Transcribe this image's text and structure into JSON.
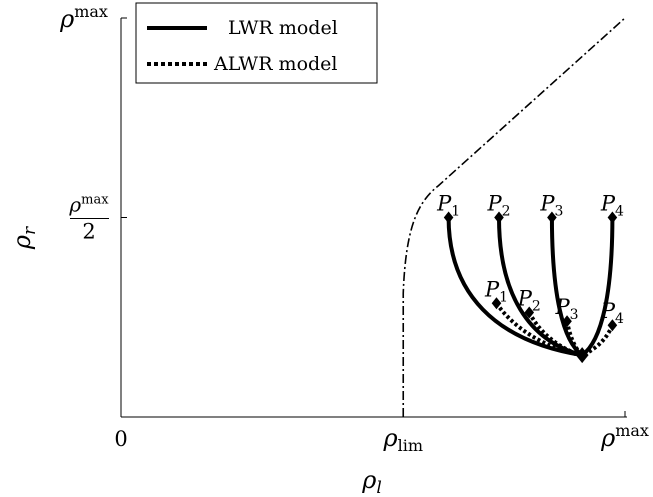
{
  "chart_data": {
    "type": "line",
    "xlabel": "ρl",
    "ylabel": "ρr",
    "x_ticks": [
      {
        "label": "0",
        "value": 0
      },
      {
        "label": "ρlim",
        "value": 0.56
      },
      {
        "label": "ρmax",
        "value": 1.0
      }
    ],
    "y_ticks": [
      {
        "label": "ρmax/2",
        "value": 0.5
      },
      {
        "label": "ρmax",
        "value": 1.0
      }
    ],
    "xlim": [
      0,
      1
    ],
    "ylim": [
      0,
      1
    ],
    "legend": {
      "position": "top-left",
      "entries": [
        {
          "label": "LWR model",
          "style": "solid"
        },
        {
          "label": "ALWR model",
          "style": "dotted"
        }
      ]
    },
    "boundary_curve": {
      "style": "dash-dot",
      "points": [
        [
          0.56,
          0.0
        ],
        [
          0.56,
          0.31
        ],
        [
          0.565,
          0.48
        ],
        [
          0.59,
          0.54
        ],
        [
          0.63,
          0.58
        ],
        [
          1.0,
          1.0
        ]
      ]
    },
    "end_point": [
      0.915,
      0.155
    ],
    "lwr_points": [
      {
        "label": "P1",
        "x": 0.65,
        "y": 0.5
      },
      {
        "label": "P2",
        "x": 0.75,
        "y": 0.5
      },
      {
        "label": "P3",
        "x": 0.855,
        "y": 0.5
      },
      {
        "label": "P4",
        "x": 0.975,
        "y": 0.5
      }
    ],
    "alwr_points": [
      {
        "label": "P1",
        "x": 0.745,
        "y": 0.285
      },
      {
        "label": "P2",
        "x": 0.81,
        "y": 0.262
      },
      {
        "label": "P3",
        "x": 0.885,
        "y": 0.24
      },
      {
        "label": "P4",
        "x": 0.975,
        "y": 0.23
      }
    ]
  }
}
